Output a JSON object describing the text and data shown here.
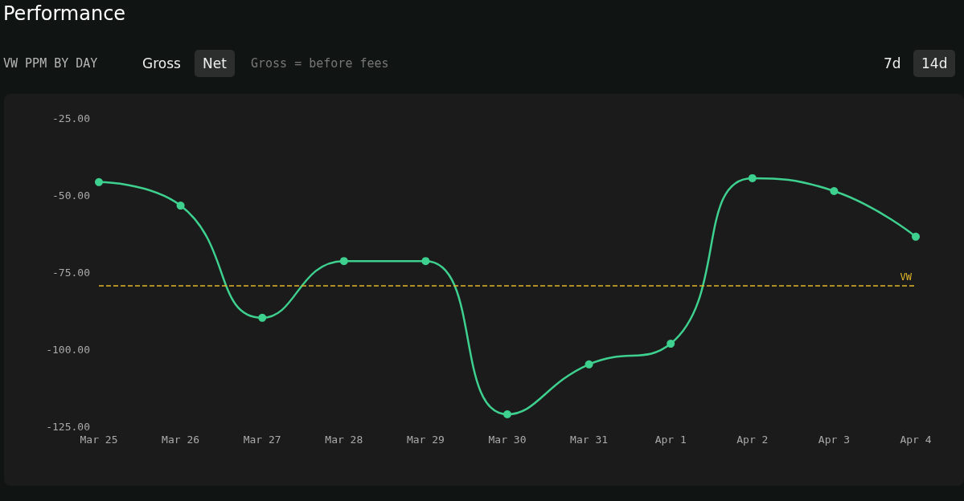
{
  "chart_data": {
    "type": "line",
    "title": "Performance",
    "subtitle": "VW PPM BY DAY",
    "annotations": [
      "Gross",
      "Net",
      "Gross = before fees",
      "7d",
      "14d"
    ],
    "categories": [
      "Mar 25",
      "Mar 26",
      "Mar 27",
      "Mar 28",
      "Mar 29",
      "Mar 30",
      "Mar 31",
      "Apr 1",
      "Apr 2",
      "Apr 3",
      "Apr 4"
    ],
    "series": [
      {
        "color": "#3ed08f",
        "values": [
          -45.8,
          -53.4,
          -89.8,
          -71.4,
          -71.4,
          -121.1,
          -104.9,
          -98.2,
          -44.5,
          -48.7,
          -63.5
        ]
      }
    ],
    "ylim": [
      -125,
      -25
    ],
    "yticks": [
      {
        "value": -125,
        "label": "-125.00"
      },
      {
        "value": -100,
        "label": "-100.00"
      },
      {
        "value": -75,
        "label": "-75.00"
      },
      {
        "value": -50,
        "label": "-50.00"
      },
      {
        "value": -25,
        "label": "-25.00"
      }
    ],
    "ref_lines": [
      {
        "axis": "y",
        "value": -79.4,
        "label": "VW",
        "color": "#e0b52a",
        "line_style": "dashed"
      }
    ],
    "grid": false,
    "marker": "circle",
    "line_style": "solid"
  }
}
